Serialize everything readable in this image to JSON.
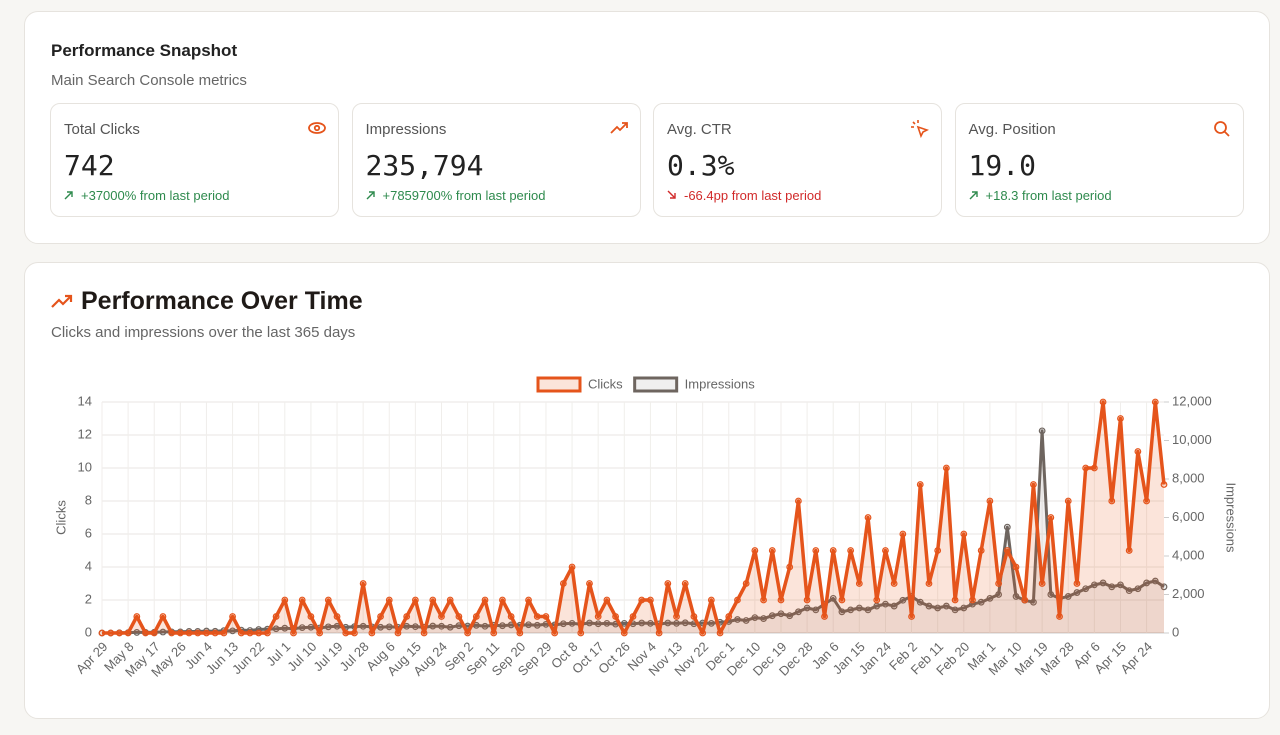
{
  "snapshot": {
    "title": "Performance Snapshot",
    "subtitle": "Main Search Console metrics",
    "cards": [
      {
        "label": "Total Clicks",
        "value": "742",
        "change": "+37000% from last period",
        "trend": "up"
      },
      {
        "label": "Impressions",
        "value": "235,794",
        "change": "+7859700% from last period",
        "trend": "up"
      },
      {
        "label": "Avg. CTR",
        "value": "0.3%",
        "change": "-66.4pp from last period",
        "trend": "down"
      },
      {
        "label": "Avg. Position",
        "value": "19.0",
        "change": "+18.3 from last period",
        "trend": "up"
      }
    ]
  },
  "chart_data": {
    "type": "line",
    "title": "Performance Over Time",
    "subtitle": "Clicks and impressions over the last 365 days",
    "categories": [
      "Apr 29",
      null,
      null,
      "May 8",
      null,
      null,
      "May 17",
      null,
      null,
      "May 26",
      null,
      null,
      "Jun 4",
      null,
      null,
      "Jun 13",
      null,
      null,
      "Jun 22",
      null,
      null,
      "Jul 1",
      null,
      null,
      "Jul 10",
      null,
      null,
      "Jul 19",
      null,
      null,
      "Jul 28",
      null,
      null,
      "Aug 6",
      null,
      null,
      "Aug 15",
      null,
      null,
      "Aug 24",
      null,
      null,
      "Sep 2",
      null,
      null,
      "Sep 11",
      null,
      null,
      "Sep 20",
      null,
      null,
      "Sep 29",
      null,
      null,
      "Oct 8",
      null,
      null,
      "Oct 17",
      null,
      null,
      "Oct 26",
      null,
      null,
      "Nov 4",
      null,
      null,
      "Nov 13",
      null,
      null,
      "Nov 22",
      null,
      null,
      "Dec 1",
      null,
      null,
      "Dec 10",
      null,
      null,
      "Dec 19",
      null,
      null,
      "Dec 28",
      null,
      null,
      "Jan 6",
      null,
      null,
      "Jan 15",
      null,
      null,
      "Jan 24",
      null,
      null,
      "Feb 2",
      null,
      null,
      "Feb 11",
      null,
      null,
      "Feb 20",
      null,
      null,
      "Mar 1",
      null,
      null,
      "Mar 10",
      null,
      null,
      "Mar 19",
      null,
      null,
      "Mar 28",
      null,
      null,
      "Apr 6",
      null,
      null,
      "Apr 15",
      null,
      null,
      "Apr 24",
      null,
      null
    ],
    "series": [
      {
        "name": "Clicks",
        "color": "#e5541b",
        "fill": "rgba(229,84,27,0.16)",
        "axis": "y",
        "values": [
          0,
          0,
          0,
          0,
          1,
          0,
          0,
          1,
          0,
          0,
          0,
          0,
          0,
          0,
          0,
          1,
          0,
          0,
          0,
          0,
          1,
          2,
          0,
          2,
          1,
          0,
          2,
          1,
          0,
          0,
          3,
          0,
          1,
          2,
          0,
          1,
          2,
          0,
          2,
          1,
          2,
          1,
          0,
          1,
          2,
          0,
          2,
          1,
          0,
          2,
          1,
          1,
          0,
          3,
          4,
          0,
          3,
          1,
          2,
          1,
          0,
          1,
          2,
          2,
          0,
          3,
          1,
          3,
          1,
          0,
          2,
          0,
          1,
          2,
          3,
          5,
          2,
          5,
          2,
          4,
          8,
          2,
          5,
          1,
          5,
          2,
          5,
          3,
          7,
          2,
          5,
          3,
          6,
          1,
          9,
          3,
          5,
          10,
          2,
          6,
          2,
          5,
          8,
          3,
          5,
          4,
          2,
          9,
          3,
          7,
          1,
          8,
          3,
          10,
          10,
          14,
          8,
          13,
          5,
          11,
          8,
          14,
          9
        ]
      },
      {
        "name": "Impressions",
        "color": "#6e655f",
        "fill": "rgba(110,101,95,0.10)",
        "axis": "y2",
        "values": [
          0,
          0,
          10,
          20,
          30,
          30,
          40,
          50,
          60,
          60,
          80,
          80,
          100,
          90,
          120,
          110,
          150,
          130,
          180,
          200,
          220,
          250,
          230,
          280,
          300,
          260,
          320,
          350,
          300,
          330,
          350,
          320,
          300,
          320,
          300,
          350,
          330,
          300,
          360,
          350,
          300,
          380,
          360,
          400,
          350,
          400,
          380,
          420,
          400,
          430,
          400,
          450,
          420,
          480,
          500,
          460,
          520,
          480,
          500,
          460,
          500,
          480,
          520,
          500,
          470,
          520,
          500,
          530,
          480,
          520,
          500,
          560,
          600,
          700,
          650,
          800,
          750,
          900,
          1000,
          900,
          1100,
          1300,
          1200,
          1500,
          1800,
          1100,
          1200,
          1300,
          1200,
          1400,
          1500,
          1400,
          1700,
          1900,
          1600,
          1400,
          1300,
          1400,
          1200,
          1300,
          1500,
          1600,
          1800,
          2000,
          5500,
          1900,
          1700,
          1600,
          10500,
          2000,
          1800,
          1900,
          2100,
          2300,
          2500,
          2600,
          2400,
          2500,
          2200,
          2300,
          2600,
          2700,
          2400
        ]
      }
    ],
    "y_label": "Clicks",
    "y2_label": "Impressions",
    "ylim": [
      0,
      14
    ],
    "yticks": [
      0,
      2,
      4,
      6,
      8,
      10,
      12,
      14
    ],
    "y2lim": [
      0,
      12000
    ],
    "y2ticks": [
      0,
      {
        "value": 2000,
        "label": "2,000"
      },
      {
        "value": 4000,
        "label": "4,000"
      },
      {
        "value": 6000,
        "label": "6,000"
      },
      {
        "value": 8000,
        "label": "8,000"
      },
      {
        "value": 10000,
        "label": "10,000"
      },
      {
        "value": 12000,
        "label": "12,000"
      }
    ],
    "grid": true,
    "legend": "top"
  }
}
